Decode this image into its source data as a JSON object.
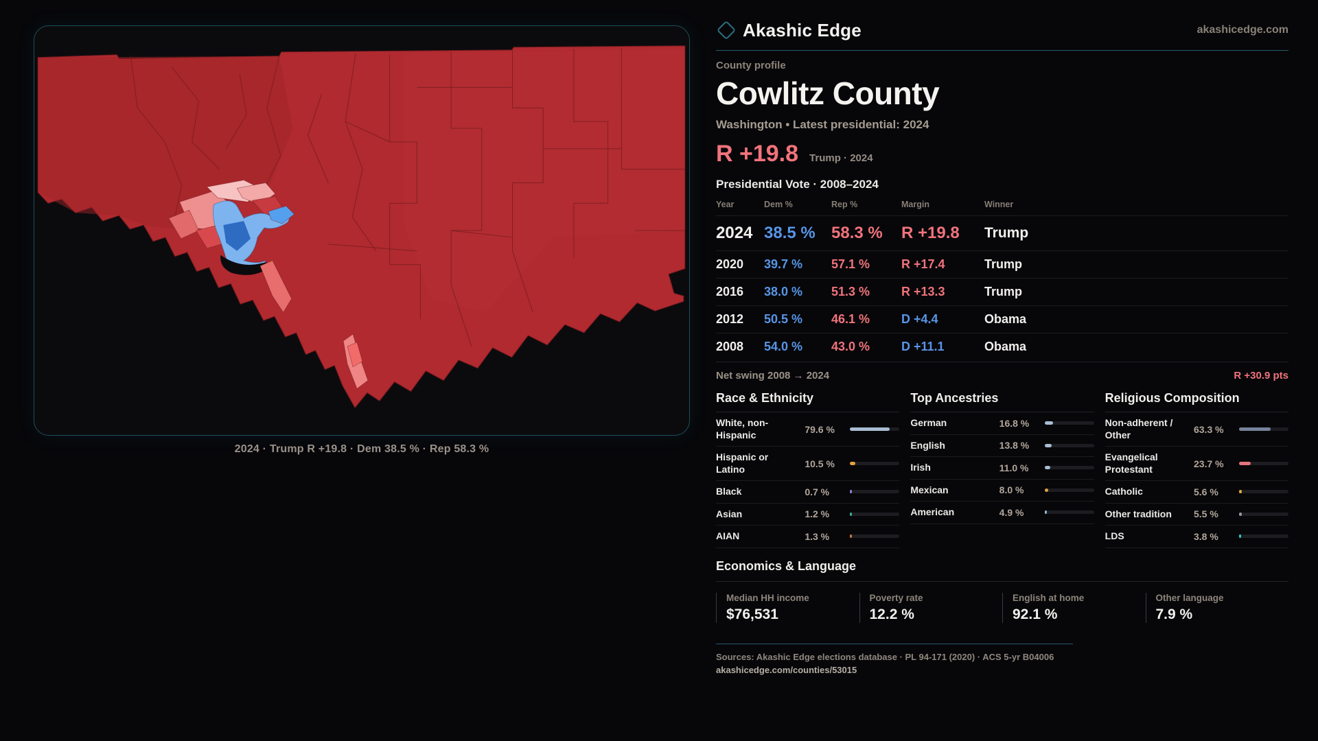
{
  "brand": {
    "name": "Akashic Edge",
    "domain": "akashicedge.com",
    "logo_icon": "diamond-icon"
  },
  "profile": {
    "kicker": "County profile",
    "title": "Cowlitz County",
    "subtitle": "Washington • Latest presidential: 2024",
    "headline_margin": "R +19.8",
    "headline_note": "Trump · 2024"
  },
  "map": {
    "caption": "2024 · Trump R +19.8 · Dem 38.5 % · Rep 58.3 %"
  },
  "elections": {
    "section_title": "Presidential Vote · 2008–2024",
    "columns": [
      "Year",
      "Dem %",
      "Rep %",
      "Margin",
      "Winner"
    ],
    "rows": [
      {
        "year": "2024",
        "dem": "38.5 %",
        "rep": "58.3 %",
        "margin": "R +19.8",
        "margin_party": "R",
        "winner": "Trump",
        "highlight": true
      },
      {
        "year": "2020",
        "dem": "39.7 %",
        "rep": "57.1 %",
        "margin": "R +17.4",
        "margin_party": "R",
        "winner": "Trump",
        "highlight": false
      },
      {
        "year": "2016",
        "dem": "38.0 %",
        "rep": "51.3 %",
        "margin": "R +13.3",
        "margin_party": "R",
        "winner": "Trump",
        "highlight": false
      },
      {
        "year": "2012",
        "dem": "50.5 %",
        "rep": "46.1 %",
        "margin": "D +4.4",
        "margin_party": "D",
        "winner": "Obama",
        "highlight": false
      },
      {
        "year": "2008",
        "dem": "54.0 %",
        "rep": "43.0 %",
        "margin": "D +11.1",
        "margin_party": "D",
        "winner": "Obama",
        "highlight": false
      }
    ],
    "net_swing_label": "Net swing 2008 → 2024",
    "net_swing_value": "R +30.9 pts"
  },
  "demographics": {
    "race": {
      "title": "Race & Ethnicity",
      "rows": [
        {
          "label": "White, non-Hispanic",
          "value": "79.6 %",
          "pct": 79.6,
          "color": "#a9bdd2"
        },
        {
          "label": "Hispanic or Latino",
          "value": "10.5 %",
          "pct": 10.5,
          "color": "#e3a23f"
        },
        {
          "label": "Black",
          "value": "0.7 %",
          "pct": 0.7,
          "color": "#8b7fd8"
        },
        {
          "label": "Asian",
          "value": "1.2 %",
          "pct": 1.2,
          "color": "#3fae85"
        },
        {
          "label": "AIAN",
          "value": "1.3 %",
          "pct": 1.3,
          "color": "#c5763a"
        }
      ]
    },
    "ancestries": {
      "title": "Top Ancestries",
      "rows": [
        {
          "label": "German",
          "value": "16.8 %",
          "pct": 16.8,
          "color": "#a9bdd2"
        },
        {
          "label": "English",
          "value": "13.8 %",
          "pct": 13.8,
          "color": "#a9bdd2"
        },
        {
          "label": "Irish",
          "value": "11.0 %",
          "pct": 11.0,
          "color": "#a9bdd2"
        },
        {
          "label": "Mexican",
          "value": "8.0 %",
          "pct": 8.0,
          "color": "#e3a23f"
        },
        {
          "label": "American",
          "value": "4.9 %",
          "pct": 4.9,
          "color": "#8fb7dc"
        }
      ]
    },
    "religion": {
      "title": "Religious Composition",
      "rows": [
        {
          "label": "Non-adherent / Other",
          "value": "63.3 %",
          "pct": 63.3,
          "color": "#77839b"
        },
        {
          "label": "Evangelical Protestant",
          "value": "23.7 %",
          "pct": 23.7,
          "color": "#e4747c"
        },
        {
          "label": "Catholic",
          "value": "5.6 %",
          "pct": 5.6,
          "color": "#d9a93c"
        },
        {
          "label": "Other tradition",
          "value": "5.5 %",
          "pct": 5.5,
          "color": "#97979f"
        },
        {
          "label": "LDS",
          "value": "3.8 %",
          "pct": 3.8,
          "color": "#2fc4c4"
        }
      ]
    }
  },
  "economics": {
    "title": "Economics & Language",
    "stats": [
      {
        "label": "Median HH income",
        "value": "$76,531"
      },
      {
        "label": "Poverty rate",
        "value": "12.2 %"
      },
      {
        "label": "English at home",
        "value": "92.1 %"
      },
      {
        "label": "Other language",
        "value": "7.9 %"
      }
    ]
  },
  "footer": {
    "sources": "Sources: Akashic Edge elections database · PL 94-171 (2020) · ACS 5-yr B04006",
    "url": "akashicedge.com/counties/53015"
  },
  "colors": {
    "accent_teal": "#275b6b",
    "rep_red": "#f0737b",
    "dem_blue": "#5895e6",
    "map_red": "#b02a2f",
    "map_blue": "#7db4f0"
  }
}
